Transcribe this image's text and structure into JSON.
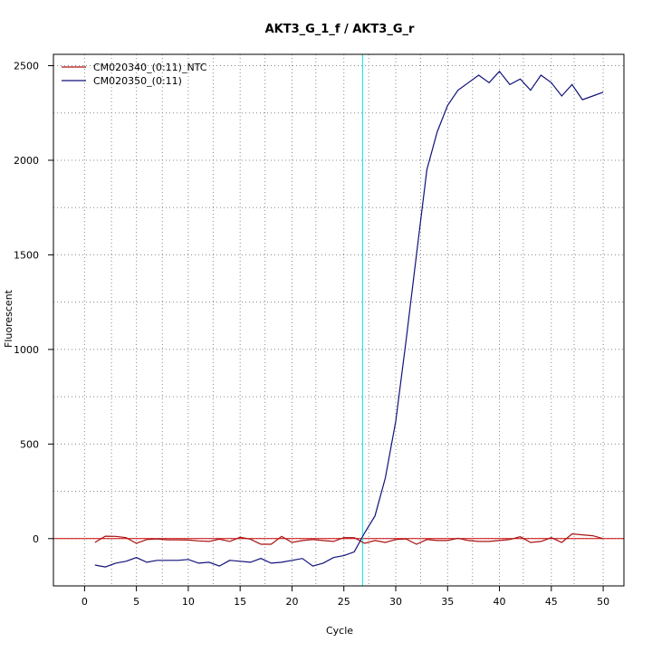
{
  "chart_data": {
    "type": "line",
    "title": "AKT3_G_1_f / AKT3_G_r",
    "xlabel": "Cycle",
    "ylabel": "Fluorescent",
    "xlim": [
      -3,
      52
    ],
    "ylim": [
      -250,
      2560
    ],
    "x_ticks": [
      0,
      5,
      10,
      15,
      20,
      25,
      30,
      35,
      40,
      45,
      50
    ],
    "y_ticks": [
      0,
      500,
      1000,
      1500,
      2000,
      2500
    ],
    "x_grid": [
      2.6,
      7.5,
      12.4,
      17.4,
      22.3,
      27.4,
      32.4,
      37.4,
      42.3,
      47.2
    ],
    "y_grid": [
      250,
      750,
      1250,
      1750,
      2250
    ],
    "grid": true,
    "legend_position": "top-left",
    "threshold": {
      "y": 0,
      "color": "#cc0000"
    },
    "cycle_threshold": {
      "x": 26.8,
      "color": "#00e5e5"
    },
    "series": [
      {
        "name": "CM020340_(0:11)_NTC",
        "color": "#aa1111",
        "x": [
          1,
          2,
          3,
          4,
          5,
          6,
          7,
          8,
          9,
          10,
          11,
          12,
          13,
          14,
          15,
          16,
          17,
          18,
          19,
          20,
          21,
          22,
          23,
          24,
          25,
          26,
          27,
          28,
          29,
          30,
          31,
          32,
          33,
          34,
          35,
          36,
          37,
          38,
          39,
          40,
          41,
          42,
          43,
          44,
          45,
          46,
          47,
          48,
          49,
          50
        ],
        "y": [
          -20,
          13,
          12,
          5,
          -25,
          -5,
          -2,
          -7,
          -7,
          -8,
          -12,
          -15,
          -3,
          -15,
          7,
          -3,
          -30,
          -30,
          12,
          -20,
          -10,
          -5,
          -10,
          -15,
          5,
          5,
          -25,
          -10,
          -20,
          -5,
          -2,
          -30,
          -5,
          -10,
          -10,
          2,
          -10,
          -15,
          -15,
          -10,
          -5,
          10,
          -20,
          -15,
          5,
          -20,
          25,
          20,
          15,
          0
        ]
      },
      {
        "name": "CM020350_(0:11)",
        "color": "#11117a",
        "x": [
          1,
          2,
          3,
          4,
          5,
          6,
          7,
          8,
          9,
          10,
          11,
          12,
          13,
          14,
          15,
          16,
          17,
          18,
          19,
          20,
          21,
          22,
          23,
          24,
          25,
          26,
          27,
          28,
          29,
          30,
          31,
          32,
          33,
          34,
          35,
          36,
          37,
          38,
          39,
          40,
          41,
          42,
          43,
          44,
          45,
          46,
          47,
          48,
          49,
          50
        ],
        "y": [
          -140,
          -150,
          -130,
          -120,
          -100,
          -125,
          -115,
          -115,
          -115,
          -110,
          -130,
          -125,
          -145,
          -115,
          -120,
          -125,
          -105,
          -130,
          -125,
          -115,
          -105,
          -145,
          -130,
          -100,
          -90,
          -70,
          30,
          120,
          320,
          620,
          1050,
          1500,
          1950,
          2150,
          2290,
          2370,
          2410,
          2450,
          2410,
          2470,
          2400,
          2430,
          2370,
          2450,
          2410,
          2340,
          2400,
          2320,
          2340,
          2360
        ]
      }
    ]
  }
}
